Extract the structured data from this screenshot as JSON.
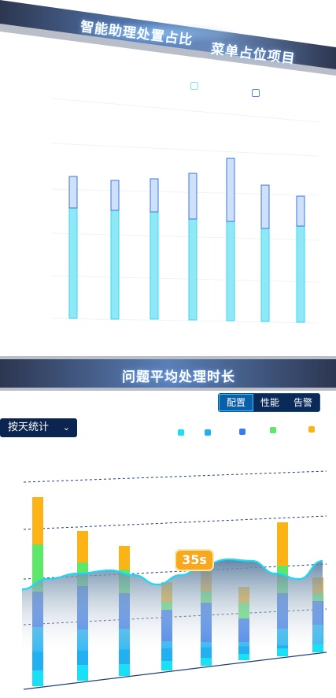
{
  "header1": {
    "title_left": "智能助理处置占比",
    "title_right": "菜单占位项目"
  },
  "chart1": {
    "legend": [
      {
        "icon": "legend-square-cyan",
        "color": "#7fe7f4"
      },
      {
        "icon": "legend-square-blue",
        "color": "#9fc2ee"
      }
    ]
  },
  "chart_data": [
    {
      "type": "bar",
      "stacked": true,
      "categories": [
        "",
        "",
        "",
        "",
        "",
        "",
        ""
      ],
      "series": [
        {
          "values": [
            140,
            138,
            136,
            128,
            126,
            118,
            122
          ],
          "color": "#8ee8f6"
        },
        {
          "values": [
            40,
            38,
            42,
            58,
            80,
            55,
            38
          ],
          "color": "#cfe1fa"
        }
      ],
      "grid": true
    },
    {
      "type": "bar",
      "stacked": true,
      "categories": [
        "",
        "",
        "",
        "",
        "",
        "",
        ""
      ],
      "series": [
        {
          "values": [
            20,
            20,
            15,
            12,
            10,
            8,
            10
          ],
          "color": "#19e0f5"
        },
        {
          "values": [
            55,
            45,
            45,
            25,
            20,
            15,
            25
          ],
          "color": "#22b0f0"
        },
        {
          "values": [
            45,
            55,
            45,
            40,
            50,
            30,
            45
          ],
          "color": "#3a7ce8"
        },
        {
          "values": [
            60,
            30,
            30,
            10,
            15,
            20,
            35
          ],
          "color": "#5ee86a"
        },
        {
          "values": [
            60,
            40,
            30,
            25,
            45,
            20,
            55
          ],
          "color": "#fbb315"
        }
      ],
      "line": {
        "type": "area",
        "color": "#19d9f8"
      },
      "grid": true,
      "annotation": "35s"
    }
  ],
  "header2": {
    "title": "问题平均处理时长"
  },
  "tabs": [
    {
      "label": "配置",
      "active": true
    },
    {
      "label": "性能",
      "active": false
    },
    {
      "label": "告警",
      "active": false
    }
  ],
  "filter": {
    "value": "按天统计",
    "icon": "chevron-down-icon"
  },
  "legend2": [
    "#19e0f5",
    "#22b0f0",
    "#3a7ce8",
    "#5ee86a",
    "#fbb315"
  ],
  "colors": {
    "banner_dark": "#2c3650",
    "banner_light": "#5a7fb8",
    "tab_active": "#0a5fa8"
  }
}
